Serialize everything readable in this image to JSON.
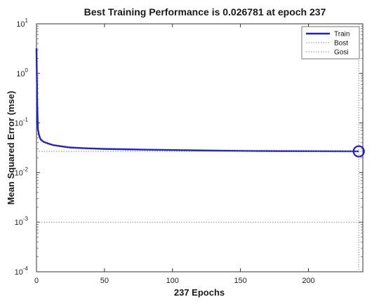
{
  "chart_data": {
    "type": "line",
    "title": "Best Training Performance is 0.026781 at epoch 237",
    "xlabel": "237 Epochs",
    "ylabel": "Mean Squared Error  (mse)",
    "xlim": [
      0,
      240
    ],
    "ylim": [
      0.0001,
      10
    ],
    "yscale": "log",
    "x_ticks": [
      "0",
      "50",
      "100",
      "150",
      "200"
    ],
    "x_tick_values": [
      0,
      50,
      100,
      150,
      200
    ],
    "y_tick_values": [
      0.0001,
      0.001,
      0.01,
      0.1,
      1,
      10
    ],
    "y_tick_base": "10",
    "y_tick_exponents": [
      "-4",
      "-3",
      "-2",
      "-1",
      "0",
      "1"
    ],
    "grid": false,
    "legend_position": "top-right",
    "series": [
      {
        "name": "Train",
        "color": "#1f1fd6",
        "style": "solid",
        "x": [
          0,
          0.5,
          1,
          2,
          3,
          5,
          8,
          12,
          18,
          25,
          35,
          50,
          65,
          80,
          100,
          120,
          140,
          160,
          180,
          200,
          220,
          237
        ],
        "y": [
          3.2,
          0.3,
          0.075,
          0.055,
          0.047,
          0.042,
          0.039,
          0.036,
          0.034,
          0.032,
          0.031,
          0.03,
          0.0295,
          0.029,
          0.0285,
          0.028,
          0.0276,
          0.0273,
          0.0271,
          0.027,
          0.0269,
          0.026781
        ]
      },
      {
        "name": "Bost",
        "color": "#888888",
        "style": "dotted",
        "x": [
          0,
          240
        ],
        "y": [
          0.026781,
          0.026781
        ]
      },
      {
        "name": "Gosi",
        "color": "#888888",
        "style": "dotted",
        "x": [
          0,
          240
        ],
        "y": [
          0.001,
          0.001
        ]
      }
    ],
    "best_marker": {
      "x": 237,
      "y": 0.026781,
      "color": "#1f1fd6"
    }
  }
}
